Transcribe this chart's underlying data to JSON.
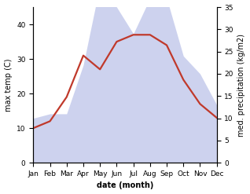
{
  "months": [
    "Jan",
    "Feb",
    "Mar",
    "Apr",
    "May",
    "Jun",
    "Jul",
    "Aug",
    "Sep",
    "Oct",
    "Nov",
    "Dec"
  ],
  "x": [
    0,
    1,
    2,
    3,
    4,
    5,
    6,
    7,
    8,
    9,
    10,
    11
  ],
  "temperature": [
    10,
    12,
    19,
    31,
    27,
    35,
    37,
    37,
    34,
    24,
    17,
    13
  ],
  "precipitation": [
    10,
    11,
    11,
    22,
    40,
    35,
    29,
    37,
    37,
    24,
    20,
    13
  ],
  "temp_color": "#c0392b",
  "precip_fill_color": "#b8c0e8",
  "temp_ylim": [
    0,
    45
  ],
  "precip_ylim": [
    0,
    35
  ],
  "temp_yticks": [
    0,
    10,
    20,
    30,
    40
  ],
  "precip_yticks": [
    0,
    5,
    10,
    15,
    20,
    25,
    30,
    35
  ],
  "xlabel": "date (month)",
  "ylabel_left": "max temp (C)",
  "ylabel_right": "med. precipitation (kg/m2)",
  "bg_color": "#ffffff",
  "label_fontsize": 7,
  "tick_fontsize": 6.5
}
